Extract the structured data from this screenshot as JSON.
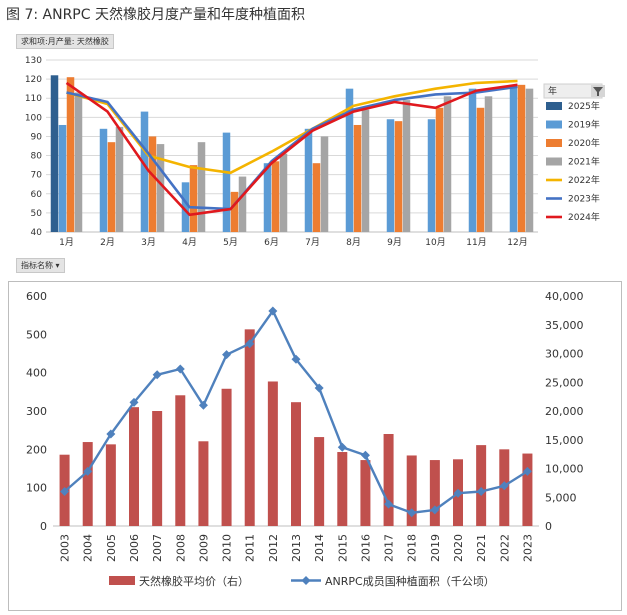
{
  "figure": {
    "title": "图 7:  ANRPC 天然橡胶月度产量和年度种植面积"
  },
  "top": {
    "field_chip": "求和项:月产量: 天然橡胶",
    "axis_chip": "指标名称",
    "legend_title": "年",
    "colors": {
      "2025年": "#2e5f8f",
      "2019年": "#5b9bd5",
      "2020年": "#ed7d31",
      "2021年": "#a5a5a5",
      "2022年": "#f4b400",
      "2023年": "#4472c4",
      "2024年": "#e0191e"
    }
  },
  "chart_data": [
    {
      "type": "bar",
      "categories": [
        "1月",
        "2月",
        "3月",
        "4月",
        "5月",
        "6月",
        "7月",
        "8月",
        "9月",
        "10月",
        "11月",
        "12月"
      ],
      "ylim": [
        40,
        130
      ],
      "yticks": [
        40,
        50,
        60,
        70,
        80,
        90,
        100,
        110,
        120,
        130
      ],
      "grid": true,
      "legend_position": "right",
      "series": [
        {
          "name": "2025年",
          "kind": "bar",
          "values": [
            122,
            null,
            null,
            null,
            null,
            null,
            null,
            null,
            null,
            null,
            null,
            null
          ]
        },
        {
          "name": "2019年",
          "kind": "bar",
          "values": [
            96,
            94,
            103,
            66,
            92,
            76,
            94,
            115,
            99,
            99,
            115,
            117
          ]
        },
        {
          "name": "2020年",
          "kind": "bar",
          "values": [
            121,
            87,
            90,
            75,
            61,
            77,
            76,
            96,
            98,
            105,
            105,
            117
          ]
        },
        {
          "name": "2021年",
          "kind": "bar",
          "values": [
            113,
            95,
            86,
            87,
            69,
            81,
            90,
            104,
            109,
            111,
            111,
            115
          ]
        },
        {
          "name": "2022年",
          "kind": "line",
          "values": [
            113,
            107,
            80,
            74,
            71,
            82,
            94,
            106,
            111,
            115,
            118,
            119
          ]
        },
        {
          "name": "2023年",
          "kind": "line",
          "values": [
            113,
            108,
            81,
            53,
            52,
            77,
            94,
            104,
            109,
            112,
            113,
            116
          ]
        },
        {
          "name": "2024年",
          "kind": "line",
          "values": [
            118,
            103,
            72,
            49,
            52,
            76,
            93,
            103,
            108,
            105,
            114,
            117
          ]
        }
      ]
    },
    {
      "type": "bar",
      "categories": [
        "2003",
        "2004",
        "2005",
        "2006",
        "2007",
        "2008",
        "2009",
        "2010",
        "2011",
        "2012",
        "2013",
        "2014",
        "2015",
        "2016",
        "2017",
        "2018",
        "2019",
        "2020",
        "2021",
        "2022",
        "2023"
      ],
      "ylim_left": [
        0,
        600
      ],
      "yticks_left": [
        0,
        100,
        200,
        300,
        400,
        500,
        600
      ],
      "ylim_right": [
        0,
        40000
      ],
      "yticks_right": [
        "0",
        "5,000",
        "10,000",
        "15,000",
        "20,000",
        "25,000",
        "30,000",
        "35,000",
        "40,000"
      ],
      "legend_position": "bottom",
      "series": [
        {
          "name": "天然橡胶平均价（右）",
          "kind": "bar",
          "axis": "left",
          "color": "#c0504d",
          "values": [
            186,
            219,
            213,
            310,
            300,
            341,
            221,
            358,
            513,
            377,
            323,
            232,
            193,
            172,
            240,
            184,
            172,
            174,
            211,
            200,
            189
          ]
        },
        {
          "name": "ANRPC成员国种植面积（千公顷）",
          "kind": "line",
          "axis": "right",
          "color": "#4f81bd",
          "values": [
            6000,
            9500,
            16000,
            21500,
            26300,
            27300,
            21000,
            29800,
            31700,
            37400,
            29000,
            24000,
            13700,
            12300,
            3800,
            2300,
            2800,
            5700,
            6000,
            7000,
            9500
          ]
        }
      ]
    }
  ]
}
